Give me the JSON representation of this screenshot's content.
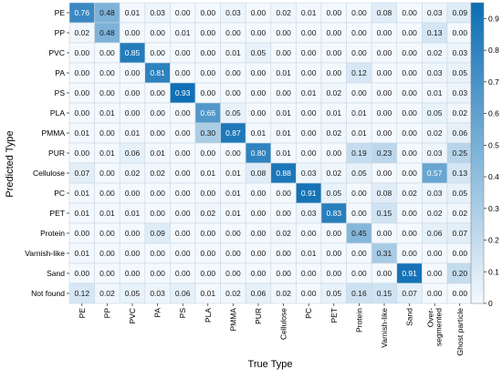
{
  "chart_data": {
    "type": "heatmap",
    "xlabel": "True Type",
    "ylabel": "Predicted Type",
    "x_categories": [
      "PE",
      "PP",
      "PVC",
      "PA",
      "PS",
      "PLA",
      "PMMA",
      "PUR",
      "Cellulose",
      "PC",
      "PET",
      "Protein",
      "Varnish-like",
      "Sand",
      "Over-segmented",
      "Ghost particle"
    ],
    "x_category_lines": [
      [
        "PE"
      ],
      [
        "PP"
      ],
      [
        "PVC"
      ],
      [
        "PA"
      ],
      [
        "PS"
      ],
      [
        "PLA"
      ],
      [
        "PMMA"
      ],
      [
        "PUR"
      ],
      [
        "Cellulose"
      ],
      [
        "PC"
      ],
      [
        "PET"
      ],
      [
        "Protein"
      ],
      [
        "Varnish-like"
      ],
      [
        "Sand"
      ],
      [
        "Over-",
        "segmented"
      ],
      [
        "Ghost particle"
      ]
    ],
    "y_categories": [
      "PE",
      "PP",
      "PVC",
      "PA",
      "PS",
      "PLA",
      "PMMA",
      "PUR",
      "Cellulose",
      "PC",
      "PET",
      "Protein",
      "Varnish-like",
      "Sand",
      "Not found"
    ],
    "values": [
      [
        0.76,
        0.48,
        0.01,
        0.03,
        0.0,
        0.0,
        0.03,
        0.0,
        0.02,
        0.01,
        0.0,
        0.0,
        0.08,
        0.0,
        0.03,
        0.09
      ],
      [
        0.02,
        0.48,
        0.0,
        0.0,
        0.01,
        0.0,
        0.0,
        0.0,
        0.0,
        0.0,
        0.0,
        0.0,
        0.0,
        0.0,
        0.13,
        0.0
      ],
      [
        0.0,
        0.0,
        0.85,
        0.0,
        0.0,
        0.0,
        0.01,
        0.05,
        0.0,
        0.0,
        0.0,
        0.0,
        0.0,
        0.0,
        0.02,
        0.03
      ],
      [
        0.0,
        0.0,
        0.0,
        0.81,
        0.0,
        0.0,
        0.0,
        0.0,
        0.01,
        0.0,
        0.0,
        0.12,
        0.0,
        0.0,
        0.03,
        0.05
      ],
      [
        0.0,
        0.0,
        0.0,
        0.0,
        0.93,
        0.0,
        0.0,
        0.0,
        0.0,
        0.01,
        0.02,
        0.0,
        0.0,
        0.0,
        0.01,
        0.03
      ],
      [
        0.0,
        0.01,
        0.0,
        0.0,
        0.0,
        0.66,
        0.05,
        0.0,
        0.01,
        0.0,
        0.01,
        0.01,
        0.0,
        0.0,
        0.05,
        0.02
      ],
      [
        0.01,
        0.0,
        0.01,
        0.0,
        0.0,
        0.3,
        0.87,
        0.01,
        0.01,
        0.0,
        0.02,
        0.01,
        0.0,
        0.0,
        0.02,
        0.06
      ],
      [
        0.0,
        0.01,
        0.06,
        0.01,
        0.0,
        0.0,
        0.0,
        0.8,
        0.01,
        0.0,
        0.0,
        0.19,
        0.23,
        0.0,
        0.03,
        0.25
      ],
      [
        0.07,
        0.0,
        0.02,
        0.02,
        0.0,
        0.01,
        0.01,
        0.08,
        0.88,
        0.03,
        0.02,
        0.05,
        0.0,
        0.0,
        0.57,
        0.13
      ],
      [
        0.01,
        0.0,
        0.0,
        0.0,
        0.0,
        0.0,
        0.01,
        0.0,
        0.0,
        0.91,
        0.05,
        0.0,
        0.08,
        0.02,
        0.03,
        0.05
      ],
      [
        0.01,
        0.01,
        0.01,
        0.0,
        0.0,
        0.02,
        0.01,
        0.0,
        0.0,
        0.03,
        0.83,
        0.0,
        0.15,
        0.0,
        0.02,
        0.02
      ],
      [
        0.0,
        0.0,
        0.0,
        0.09,
        0.0,
        0.0,
        0.0,
        0.0,
        0.02,
        0.0,
        0.0,
        0.45,
        0.0,
        0.0,
        0.06,
        0.07
      ],
      [
        0.01,
        0.0,
        0.0,
        0.0,
        0.0,
        0.0,
        0.0,
        0.0,
        0.0,
        0.01,
        0.0,
        0.0,
        0.31,
        0.0,
        0.0,
        0.0
      ],
      [
        0.0,
        0.0,
        0.0,
        0.0,
        0.0,
        0.0,
        0.0,
        0.0,
        0.0,
        0.0,
        0.0,
        0.0,
        0.0,
        0.91,
        0.0,
        0.2
      ],
      [
        0.12,
        0.02,
        0.05,
        0.03,
        0.06,
        0.01,
        0.02,
        0.06,
        0.02,
        0.0,
        0.05,
        0.16,
        0.15,
        0.07,
        0.0,
        0.0
      ]
    ],
    "value_range": [
      0,
      0.95
    ],
    "colorbar_ticks": [
      "0",
      "0.1",
      "0.2",
      "0.3",
      "0.4",
      "0.5",
      "0.6",
      "0.7",
      "0.8",
      "0.9"
    ],
    "colormap": {
      "low": "#f4f9fe",
      "high": "#0b6db3"
    },
    "grid": true
  }
}
